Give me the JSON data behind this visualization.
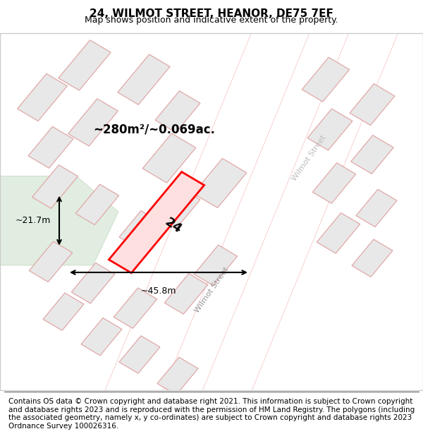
{
  "title": "24, WILMOT STREET, HEANOR, DE75 7EF",
  "subtitle": "Map shows position and indicative extent of the property.",
  "footer": "Contains OS data © Crown copyright and database right 2021. This information is subject to Crown copyright and database rights 2023 and is reproduced with the permission of HM Land Registry. The polygons (including the associated geometry, namely x, y co-ordinates) are subject to Crown copyright and database rights 2023 Ordnance Survey 100026316.",
  "area_label": "~280m²/~0.069ac.",
  "width_label": "~45.8m",
  "height_label": "~21.7m",
  "plot_number": "24",
  "bg_color": "#f8f8f8",
  "map_bg": "#ffffff",
  "street_color": "#f5c0c0",
  "building_color": "#e8e8e8",
  "building_edge": "#e0a0a0",
  "road_fill": "#ffffff",
  "highlight_color": "#ff0000",
  "highlight_fill": "#ffe0e0",
  "green_area": "#e0ede0",
  "street_label1": "Wilmot Street",
  "street_label2": "Wilmot Street",
  "title_fontsize": 11,
  "subtitle_fontsize": 9,
  "footer_fontsize": 7.5
}
